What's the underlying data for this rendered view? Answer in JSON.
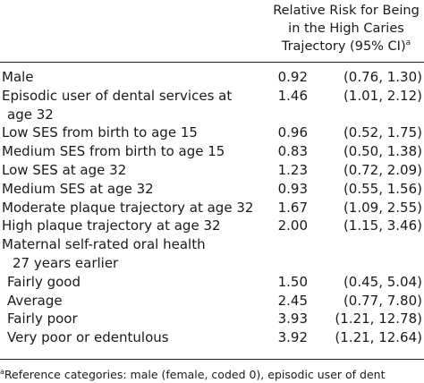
{
  "header": {
    "line1": "Relative Risk for Being",
    "line2": "in the High Caries",
    "line3": "Trajectory (95% CI)",
    "mark": "a"
  },
  "rows": [
    {
      "label": "Male",
      "rr": "0.92",
      "ci": "(0.76, 1.30)"
    },
    {
      "label": "Episodic user of dental services at",
      "rr": "1.46",
      "ci": "(1.01, 2.12)"
    },
    {
      "label": "age 32",
      "rr": "",
      "ci": ""
    },
    {
      "label": "Low SES from birth to age 15",
      "rr": "0.96",
      "ci": "(0.52, 1.75)"
    },
    {
      "label": "Medium SES from birth to age 15",
      "rr": "0.83",
      "ci": "(0.50, 1.38)"
    },
    {
      "label": "Low SES at age 32",
      "rr": "1.23",
      "ci": "(0.72, 2.09)"
    },
    {
      "label": "Medium SES at age 32",
      "rr": "0.93",
      "ci": "(0.55, 1.56)"
    },
    {
      "label": "Moderate plaque trajectory at age 32",
      "rr": "1.67",
      "ci": "(1.09, 2.55)"
    },
    {
      "label": "High plaque trajectory at age 32",
      "rr": "2.00",
      "ci": "(1.15, 3.46)"
    },
    {
      "label": "Maternal self-rated oral health",
      "rr": "",
      "ci": ""
    },
    {
      "label": "27 years earlier",
      "rr": "",
      "ci": ""
    },
    {
      "label": "Fairly good",
      "rr": "1.50",
      "ci": "(0.45, 5.04)"
    },
    {
      "label": "Average",
      "rr": "2.45",
      "ci": "(0.77, 7.80)"
    },
    {
      "label": "Fairly poor",
      "rr": "3.93",
      "ci": "(1.21, 12.78)"
    },
    {
      "label": "Very poor or edentulous",
      "rr": "3.92",
      "ci": "(1.21, 12.64)"
    }
  ],
  "footnote": {
    "mark": "a",
    "text": "Reference categories: male (female, coded 0), episodic user of dent"
  }
}
